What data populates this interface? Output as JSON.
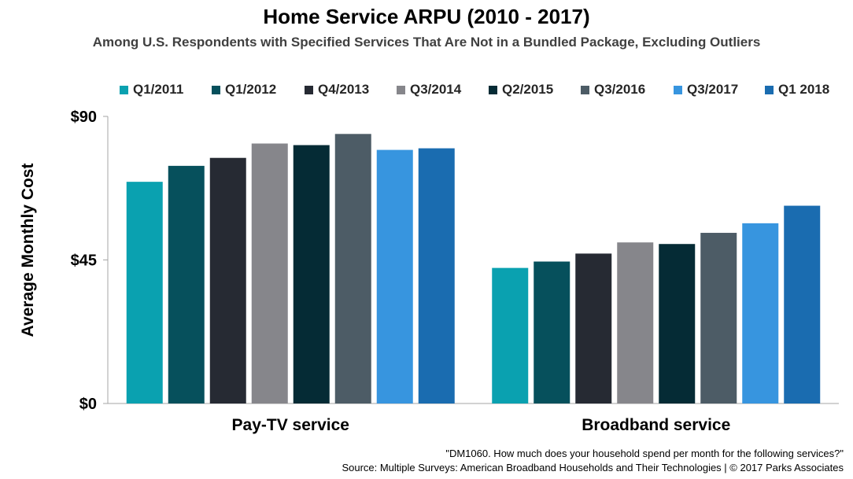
{
  "chart_data": {
    "type": "bar",
    "title": "Home Service ARPU (2010 - 2017)",
    "subtitle": "Among U.S. Respondents with Specified Services That Are Not in a Bundled Package, Excluding Outliers",
    "ylabel": "Average Monthly Cost",
    "xlabel": "",
    "categories": [
      "Pay-TV service",
      "Broadband service"
    ],
    "ylim": [
      0,
      90
    ],
    "yticks": [
      0,
      45,
      90
    ],
    "ytick_labels": [
      "$0",
      "$45",
      "$90"
    ],
    "legend_position": "top",
    "grid": false,
    "series": [
      {
        "name": "Q1/2011",
        "color": "#0aa1b0",
        "values": [
          69.5,
          42.5
        ]
      },
      {
        "name": "Q1/2012",
        "color": "#06505c",
        "values": [
          74.5,
          44.5
        ]
      },
      {
        "name": "Q4/2013",
        "color": "#262a33",
        "values": [
          77,
          47
        ]
      },
      {
        "name": "Q3/2014",
        "color": "#86868b",
        "values": [
          81.5,
          50.5
        ]
      },
      {
        "name": "Q2/2015",
        "color": "#052b35",
        "values": [
          81,
          50
        ]
      },
      {
        "name": "Q3/2016",
        "color": "#4d5c66",
        "values": [
          84.5,
          53.5
        ]
      },
      {
        "name": "Q3/2017",
        "color": "#3795df",
        "values": [
          79.5,
          56.5
        ]
      },
      {
        "name": "Q1 2018",
        "color": "#1a6cb0",
        "values": [
          80,
          62
        ]
      }
    ]
  },
  "footnote": {
    "question": "\"DM1060.  How much does your household spend per month for the following services?\"",
    "source": "Source:  Multiple Surveys: American Broadband Households and Their Technologies | © 2017 Parks Associates"
  }
}
